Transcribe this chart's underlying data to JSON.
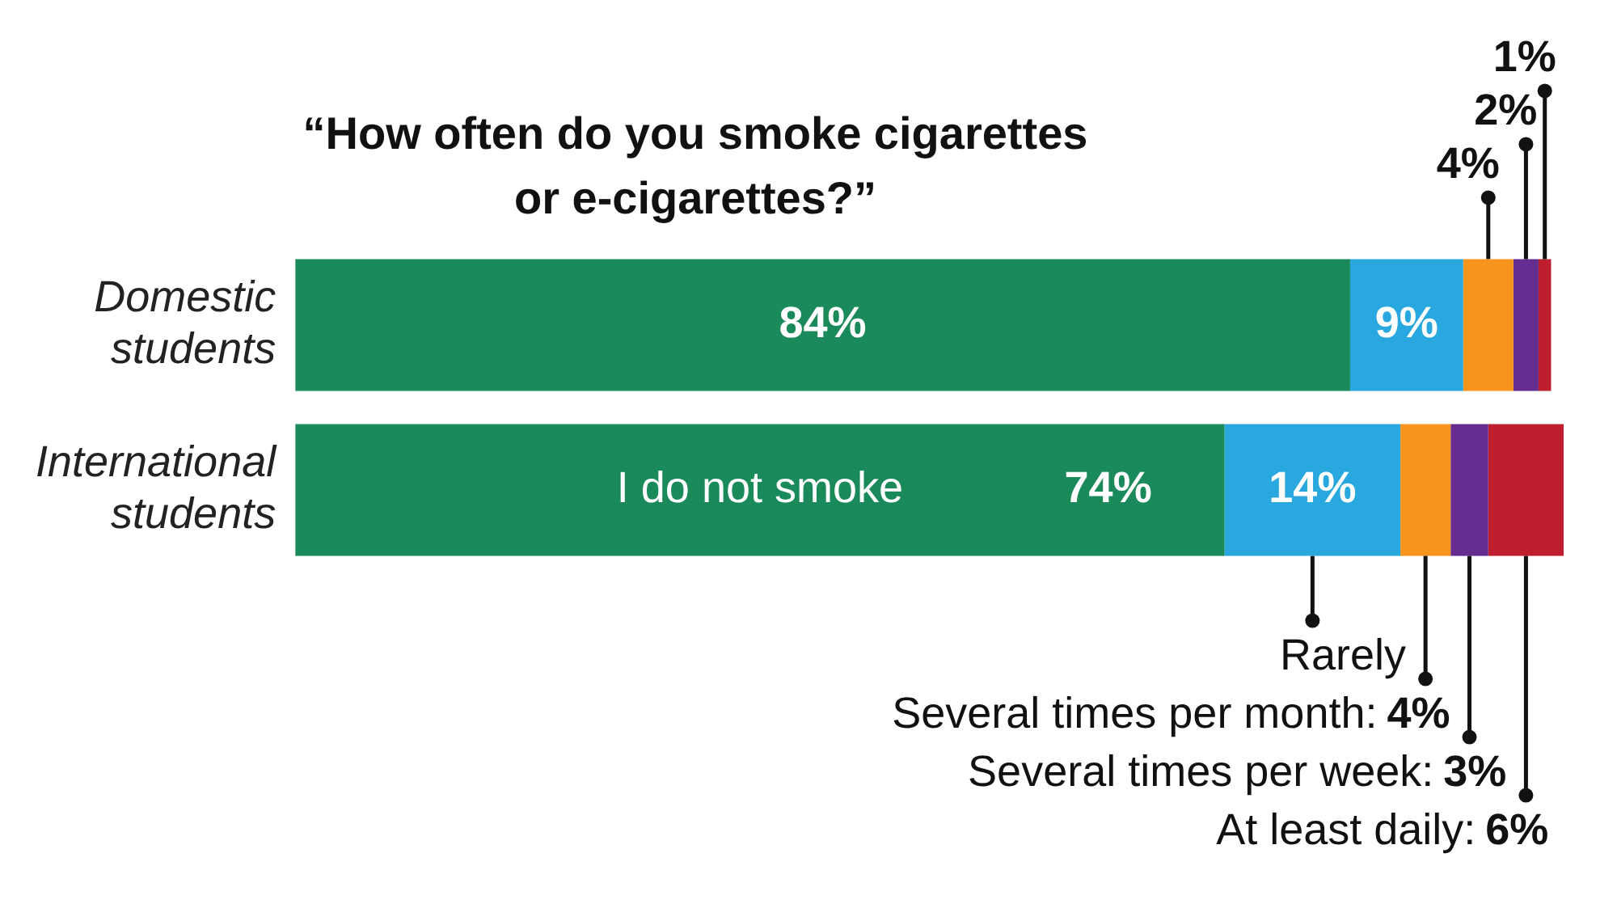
{
  "chart_data": {
    "type": "bar",
    "orientation": "horizontal",
    "stacked": true,
    "tick_labels": "y",
    "title": "“How often do you smoke cigarettes or e-cigarettes?”",
    "categories": [
      "Domestic students",
      "International students"
    ],
    "series": [
      {
        "name": "I do not smoke",
        "color": "#1b8a5a",
        "values": [
          84,
          74
        ],
        "value_labels": [
          "84%",
          "74%"
        ]
      },
      {
        "name": "Rarely",
        "color": "#29a8e0",
        "values": [
          9,
          14
        ],
        "value_labels": [
          "9%",
          "14%"
        ]
      },
      {
        "name": "Several times per month:",
        "color": "#f7941d",
        "values": [
          4,
          4
        ],
        "value_labels": [
          "4%",
          "4%"
        ]
      },
      {
        "name": "Several times per week:",
        "color": "#662d91",
        "values": [
          2,
          3
        ],
        "value_labels": [
          "2%",
          "3%"
        ]
      },
      {
        "name": "At least daily:",
        "color": "#be1e2d",
        "values": [
          1,
          6
        ],
        "value_labels": [
          "1%",
          "6%"
        ]
      }
    ]
  }
}
